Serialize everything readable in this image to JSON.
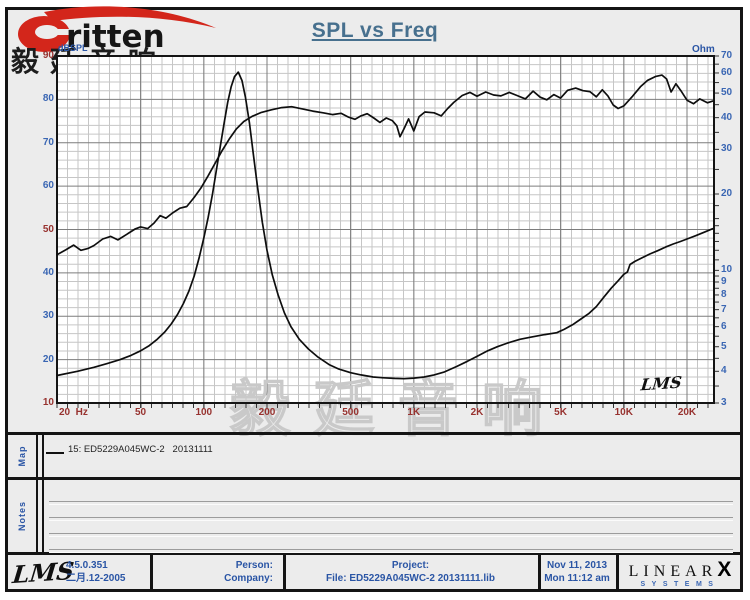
{
  "header": {
    "brand_text": "ritten",
    "brand_cn": "毅廷音响",
    "title": "SPL vs Freq",
    "left_axis_unit": "dBSPL",
    "right_axis_unit": "Ohm"
  },
  "chart_data": {
    "type": "line",
    "title": "SPL vs Freq",
    "x_axis": {
      "scale": "log",
      "min": 20,
      "max": 26000,
      "unit": "Hz",
      "ticks": [
        {
          "v": 20,
          "t": "20  Hz",
          "align": "left"
        },
        {
          "v": 50,
          "t": "50"
        },
        {
          "v": 100,
          "t": "100"
        },
        {
          "v": 200,
          "t": "200"
        },
        {
          "v": 500,
          "t": "500"
        },
        {
          "v": 1000,
          "t": "1K"
        },
        {
          "v": 2000,
          "t": "2K"
        },
        {
          "v": 5000,
          "t": "5K"
        },
        {
          "v": 10000,
          "t": "10K"
        },
        {
          "v": 20000,
          "t": "20K"
        }
      ],
      "major_gridlines": [
        50,
        100,
        200,
        500,
        1000,
        2000,
        5000,
        10000,
        20000
      ]
    },
    "y_left": {
      "unit": "dBSPL",
      "min": 10,
      "max": 90,
      "major_step": 10,
      "minor_step": 2,
      "ticks": [
        90,
        80,
        70,
        60,
        50,
        40,
        30,
        20,
        10
      ],
      "red_ticks": [
        90,
        50,
        10
      ]
    },
    "y_right": {
      "unit": "Ohm",
      "scale": "log",
      "min": 3,
      "max": 70,
      "ticks": [
        70,
        60,
        50,
        40,
        30,
        20,
        10,
        9,
        8,
        7,
        6,
        5,
        4,
        3
      ],
      "minor_ticks": [
        3.5,
        4.5,
        5.5,
        6.5,
        7.5,
        8.5,
        9.5,
        11,
        12,
        13,
        14,
        15,
        16,
        18,
        25,
        35,
        45,
        55,
        65
      ]
    },
    "grid": true,
    "legend_position": "map-panel",
    "watermark": "毅廷音响",
    "plot_logo": "LMS",
    "series": [
      {
        "name": "SPL",
        "axis": "left",
        "color": "#0e0e0e",
        "points": [
          [
            20,
            44.2
          ],
          [
            22,
            45.3
          ],
          [
            24,
            46.4
          ],
          [
            26,
            45.2
          ],
          [
            28,
            45.6
          ],
          [
            30,
            46.3
          ],
          [
            33,
            47.8
          ],
          [
            36,
            48.4
          ],
          [
            39,
            47.6
          ],
          [
            43,
            48.9
          ],
          [
            47,
            50.1
          ],
          [
            50,
            50.6
          ],
          [
            54,
            50.2
          ],
          [
            58,
            51.5
          ],
          [
            62,
            53.2
          ],
          [
            66,
            52.6
          ],
          [
            71,
            53.8
          ],
          [
            77,
            54.9
          ],
          [
            83,
            55.3
          ],
          [
            90,
            57.4
          ],
          [
            97,
            59.6
          ],
          [
            105,
            62.4
          ],
          [
            113,
            65.2
          ],
          [
            122,
            68.1
          ],
          [
            132,
            70.8
          ],
          [
            143,
            73.2
          ],
          [
            155,
            74.9
          ],
          [
            170,
            76.1
          ],
          [
            188,
            77.0
          ],
          [
            210,
            77.6
          ],
          [
            235,
            78.1
          ],
          [
            262,
            78.3
          ],
          [
            295,
            77.8
          ],
          [
            330,
            77.3
          ],
          [
            370,
            76.9
          ],
          [
            410,
            76.5
          ],
          [
            450,
            76.8
          ],
          [
            490,
            75.9
          ],
          [
            525,
            75.4
          ],
          [
            560,
            76.2
          ],
          [
            600,
            76.7
          ],
          [
            645,
            75.7
          ],
          [
            690,
            74.7
          ],
          [
            740,
            75.7
          ],
          [
            790,
            75.1
          ],
          [
            830,
            73.9
          ],
          [
            860,
            71.4
          ],
          [
            900,
            73.3
          ],
          [
            945,
            75.5
          ],
          [
            1000,
            72.7
          ],
          [
            1060,
            76.0
          ],
          [
            1130,
            77.1
          ],
          [
            1250,
            76.9
          ],
          [
            1350,
            76.2
          ],
          [
            1450,
            77.9
          ],
          [
            1550,
            79.3
          ],
          [
            1700,
            80.9
          ],
          [
            1850,
            81.6
          ],
          [
            2000,
            80.7
          ],
          [
            2200,
            81.7
          ],
          [
            2400,
            81.0
          ],
          [
            2600,
            80.8
          ],
          [
            2850,
            81.6
          ],
          [
            3100,
            80.9
          ],
          [
            3400,
            80.1
          ],
          [
            3700,
            81.9
          ],
          [
            4000,
            80.5
          ],
          [
            4300,
            79.9
          ],
          [
            4650,
            81.1
          ],
          [
            5000,
            80.3
          ],
          [
            5400,
            82.1
          ],
          [
            5900,
            82.6
          ],
          [
            6400,
            82.0
          ],
          [
            6900,
            81.8
          ],
          [
            7400,
            80.6
          ],
          [
            7900,
            82.2
          ],
          [
            8400,
            80.8
          ],
          [
            8900,
            78.7
          ],
          [
            9400,
            77.9
          ],
          [
            10000,
            78.5
          ],
          [
            11000,
            80.7
          ],
          [
            12000,
            82.9
          ],
          [
            13000,
            84.4
          ],
          [
            14200,
            85.3
          ],
          [
            15200,
            85.6
          ],
          [
            16000,
            84.7
          ],
          [
            16800,
            81.7
          ],
          [
            17700,
            83.6
          ],
          [
            18700,
            82.0
          ],
          [
            20000,
            79.8
          ],
          [
            21500,
            79.0
          ],
          [
            23000,
            80.1
          ],
          [
            25000,
            79.2
          ],
          [
            26500,
            79.6
          ]
        ]
      },
      {
        "name": "Impedance",
        "axis": "right",
        "color": "#0e0e0e",
        "points": [
          [
            20,
            3.85
          ],
          [
            25,
            4.0
          ],
          [
            30,
            4.15
          ],
          [
            35,
            4.3
          ],
          [
            40,
            4.45
          ],
          [
            45,
            4.62
          ],
          [
            50,
            4.82
          ],
          [
            55,
            5.05
          ],
          [
            60,
            5.35
          ],
          [
            65,
            5.7
          ],
          [
            70,
            6.15
          ],
          [
            75,
            6.7
          ],
          [
            80,
            7.4
          ],
          [
            85,
            8.3
          ],
          [
            90,
            9.5
          ],
          [
            95,
            11.2
          ],
          [
            100,
            13.4
          ],
          [
            105,
            16.2
          ],
          [
            110,
            20
          ],
          [
            115,
            25
          ],
          [
            120,
            31
          ],
          [
            125,
            38
          ],
          [
            130,
            46
          ],
          [
            135,
            53
          ],
          [
            140,
            58
          ],
          [
            146,
            60.5
          ],
          [
            152,
            56
          ],
          [
            158,
            48
          ],
          [
            165,
            38
          ],
          [
            172,
            29
          ],
          [
            180,
            21.5
          ],
          [
            190,
            15.5
          ],
          [
            200,
            12
          ],
          [
            212,
            9.6
          ],
          [
            226,
            8.0
          ],
          [
            242,
            6.8
          ],
          [
            260,
            6.0
          ],
          [
            285,
            5.35
          ],
          [
            315,
            4.9
          ],
          [
            350,
            4.55
          ],
          [
            395,
            4.25
          ],
          [
            440,
            4.08
          ],
          [
            500,
            3.95
          ],
          [
            560,
            3.87
          ],
          [
            640,
            3.8
          ],
          [
            720,
            3.77
          ],
          [
            810,
            3.75
          ],
          [
            900,
            3.74
          ],
          [
            1000,
            3.76
          ],
          [
            1120,
            3.8
          ],
          [
            1250,
            3.87
          ],
          [
            1400,
            3.98
          ],
          [
            1600,
            4.18
          ],
          [
            1800,
            4.38
          ],
          [
            2000,
            4.58
          ],
          [
            2250,
            4.82
          ],
          [
            2500,
            5.0
          ],
          [
            2800,
            5.17
          ],
          [
            3200,
            5.35
          ],
          [
            3600,
            5.45
          ],
          [
            4200,
            5.58
          ],
          [
            4800,
            5.68
          ],
          [
            5200,
            5.85
          ],
          [
            5700,
            6.1
          ],
          [
            6200,
            6.4
          ],
          [
            6800,
            6.75
          ],
          [
            7400,
            7.2
          ],
          [
            8000,
            7.8
          ],
          [
            8700,
            8.5
          ],
          [
            9400,
            9.1
          ],
          [
            10000,
            9.65
          ],
          [
            10400,
            9.85
          ],
          [
            10700,
            10.55
          ],
          [
            11300,
            10.85
          ],
          [
            12200,
            11.2
          ],
          [
            13300,
            11.6
          ],
          [
            14500,
            11.95
          ],
          [
            15800,
            12.35
          ],
          [
            17200,
            12.7
          ],
          [
            18600,
            13.0
          ],
          [
            20000,
            13.3
          ],
          [
            22000,
            13.7
          ],
          [
            24500,
            14.2
          ],
          [
            26500,
            14.6
          ]
        ]
      }
    ]
  },
  "map_panel": {
    "label": "Map",
    "legend_text": "15: ED5229A045WC-2   20131111"
  },
  "notes_panel": {
    "label": "Notes",
    "line_count": 4
  },
  "footer": {
    "lms_logo": "LMS",
    "version": "4.5.0.351",
    "version_date": "二月.12-2005",
    "person_label": "Person:",
    "company_label": "Company:",
    "project_label": "Project:",
    "file_label": "File: ED5229A045WC-2 20131111.lib",
    "date": "Nov 11, 2013",
    "time": "Mon 11:12 am",
    "brand_main": "LINEAR",
    "brand_x": "X",
    "brand_sub": "SYSTEMS"
  },
  "colors": {
    "accent_blue": "#2a55a5",
    "tick_blue": "#3a66b3",
    "tick_red": "#97322f",
    "title": "#47708e",
    "curve": "#0e0e0e",
    "grid_minor": "#c6c6c6",
    "grid_major": "#7d7d7d",
    "border": "#141414",
    "watermark": "#c9c9c9",
    "logo_red": "#d3261b"
  }
}
